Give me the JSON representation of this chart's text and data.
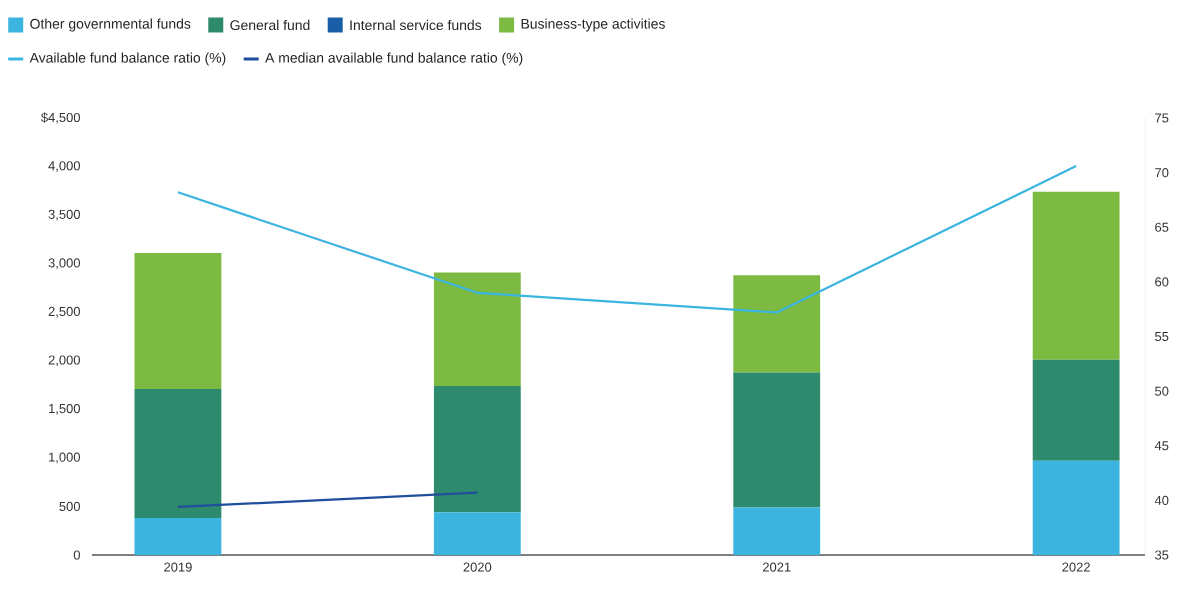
{
  "chart_data": {
    "type": "bar",
    "stacked": true,
    "legend": "top",
    "categories": [
      "2019",
      "2020",
      "2021",
      "2022"
    ],
    "ylim": [
      0,
      4500
    ],
    "yticks": [
      {
        "value": 0,
        "label": "0"
      },
      {
        "value": 500,
        "label": "500"
      },
      {
        "value": 1000,
        "label": "1,000"
      },
      {
        "value": 1500,
        "label": "1,500"
      },
      {
        "value": 2000,
        "label": "2,000"
      },
      {
        "value": 2500,
        "label": "2,500"
      },
      {
        "value": 3000,
        "label": "3,000"
      },
      {
        "value": 3500,
        "label": "3,500"
      },
      {
        "value": 4000,
        "label": "4,000"
      },
      {
        "value": 4500,
        "label": "$4,500"
      }
    ],
    "y2lim": [
      35,
      75
    ],
    "y2ticks": [
      35,
      40,
      45,
      50,
      55,
      60,
      65,
      70,
      75
    ],
    "series": [
      {
        "name": "Other governmental funds",
        "type": "bar",
        "color": "#3bb5e0",
        "values": [
          380,
          440,
          490,
          970
        ]
      },
      {
        "name": "General fund",
        "type": "bar",
        "color": "#2e8a6c",
        "values": [
          1330,
          1300,
          1390,
          1040
        ]
      },
      {
        "name": "Internal service funds",
        "type": "bar",
        "color": "#1a5ea8",
        "values": [
          null,
          null,
          null,
          null
        ]
      },
      {
        "name": "Business-type activities",
        "type": "bar",
        "color": "#7cba42",
        "values": [
          1400,
          1170,
          1000,
          1730
        ]
      },
      {
        "name": "Available fund balance ratio (%)",
        "type": "line",
        "axis": "y2",
        "color": "#3bb5e0",
        "values": [
          68.2,
          59.0,
          57.2,
          70.6
        ]
      },
      {
        "name": "A median available fund balance ratio (%)",
        "type": "line",
        "axis": "y2",
        "color": "#1f4e9c",
        "values": [
          39.4,
          40.7,
          null,
          null
        ]
      }
    ]
  }
}
